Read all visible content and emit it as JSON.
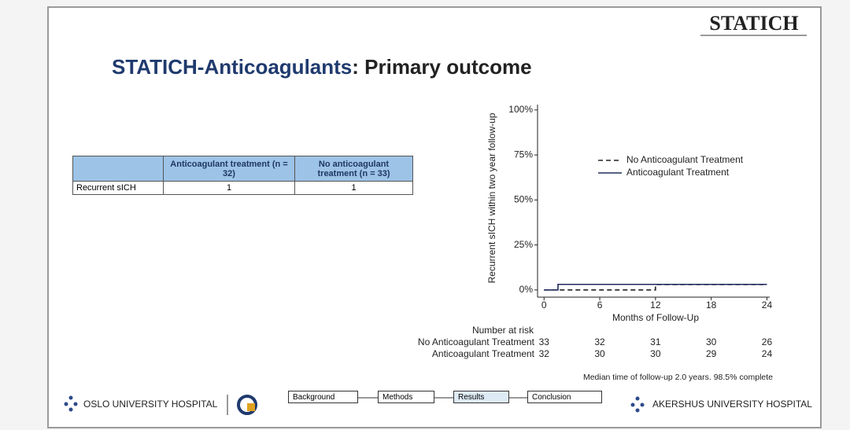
{
  "header": {
    "logo": "STATICH",
    "title": {
      "highlight": "STATICH-Anticoagulants",
      "rest": ": Primary outcome"
    }
  },
  "table": {
    "columns": [
      "Anticoagulant treatment (n = 32)",
      "No anticoagulant treatment (n = 33)"
    ],
    "rows": [
      {
        "label": "Recurrent sICH",
        "cells": [
          1,
          1
        ]
      }
    ]
  },
  "chart_data": {
    "type": "line",
    "y_label": "Recurrent sICH within two year follow-up",
    "x_label": "Months of Follow-Up",
    "xlim": [
      -0.7,
      24.3
    ],
    "xticks": [
      0,
      6,
      12,
      18,
      24
    ],
    "ylim": [
      -4,
      103
    ],
    "yticks": [
      {
        "value": 0,
        "label": "0%"
      },
      {
        "value": 25,
        "label": "25%"
      },
      {
        "value": 50,
        "label": "50%"
      },
      {
        "value": 75,
        "label": "75%"
      },
      {
        "value": 100,
        "label": "100%"
      }
    ],
    "series": [
      {
        "name": "No Anticoagulant Treatment",
        "color": "#222222",
        "dash": true,
        "x": [
          0,
          12,
          12,
          24
        ],
        "values": [
          0,
          0,
          3,
          3
        ]
      },
      {
        "name": "Anticoagulant Treatment",
        "color": "#1f2d5c",
        "dash": false,
        "x": [
          0,
          1.5,
          1.5,
          24
        ],
        "values": [
          0,
          0,
          3.1,
          3.1
        ]
      }
    ],
    "risk_table": {
      "title": "Number at risk",
      "rows": [
        {
          "label": "No Anticoagulant Treatment",
          "values": [
            33,
            32,
            31,
            30,
            26
          ]
        },
        {
          "label": "Anticoagulant Treatment",
          "values": [
            32,
            30,
            30,
            29,
            24
          ]
        }
      ]
    },
    "note": "Median time of follow-up 2.0 years. 98.5% complete"
  },
  "footer": {
    "left": "OSLO UNIVERSITY HOSPITAL",
    "right": "AKERSHUS UNIVERSITY HOSPITAL",
    "nav": [
      "Background",
      "Methods",
      "Results",
      "Conclusion"
    ],
    "active_nav": 2
  }
}
